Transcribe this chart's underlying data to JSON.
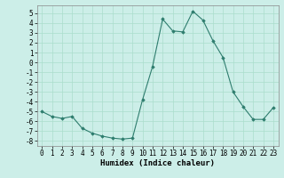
{
  "x": [
    0,
    1,
    2,
    3,
    4,
    5,
    6,
    7,
    8,
    9,
    10,
    11,
    12,
    13,
    14,
    15,
    16,
    17,
    18,
    19,
    20,
    21,
    22,
    23
  ],
  "y": [
    -5.0,
    -5.5,
    -5.7,
    -5.5,
    -6.7,
    -7.2,
    -7.5,
    -7.7,
    -7.8,
    -7.7,
    -3.8,
    -0.4,
    4.4,
    3.2,
    3.1,
    5.2,
    4.3,
    2.2,
    0.5,
    -3.0,
    -4.5,
    -5.8,
    -5.8,
    -4.6
  ],
  "line_color": "#2e7d6e",
  "marker": "D",
  "marker_size": 1.8,
  "bg_color": "#cceee8",
  "grid_color": "#aaddcc",
  "xlabel": "Humidex (Indice chaleur)",
  "xlabel_fontsize": 6.5,
  "tick_fontsize": 5.5,
  "ylim": [
    -8.5,
    5.8
  ],
  "xlim": [
    -0.5,
    23.5
  ],
  "yticks": [
    -8,
    -7,
    -6,
    -5,
    -4,
    -3,
    -2,
    -1,
    0,
    1,
    2,
    3,
    4,
    5
  ],
  "xticks": [
    0,
    1,
    2,
    3,
    4,
    5,
    6,
    7,
    8,
    9,
    10,
    11,
    12,
    13,
    14,
    15,
    16,
    17,
    18,
    19,
    20,
    21,
    22,
    23
  ]
}
